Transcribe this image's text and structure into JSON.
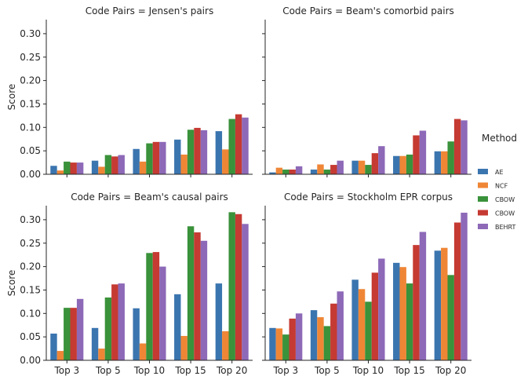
{
  "chart_data": {
    "type": "bar",
    "ylabel": "Score",
    "ylim": [
      0,
      0.33
    ],
    "yticks": [
      "0.00",
      "0.05",
      "0.10",
      "0.15",
      "0.20",
      "0.25",
      "0.30"
    ],
    "categories": [
      "Top 3",
      "Top 5",
      "Top 10",
      "Top 15",
      "Top 20"
    ],
    "legend": {
      "title": "Method",
      "position": "right",
      "entries": [
        {
          "name": "AE",
          "color": "#3b75af"
        },
        {
          "name": "NCF",
          "color": "#ef8636"
        },
        {
          "name": "CBOW",
          "color": "#3a923a"
        },
        {
          "name": "CBOW",
          "color": "#c53a32"
        },
        {
          "name": "BEHRT",
          "color": "#8d69b8"
        }
      ]
    },
    "panels": [
      {
        "title": "Code Pairs = Jensen's pairs",
        "series": [
          {
            "name": "AE",
            "values": [
              0.018,
              0.029,
              0.054,
              0.074,
              0.092
            ]
          },
          {
            "name": "NCF",
            "values": [
              0.008,
              0.016,
              0.027,
              0.042,
              0.053
            ]
          },
          {
            "name": "CBOW",
            "values": [
              0.027,
              0.041,
              0.066,
              0.095,
              0.118
            ]
          },
          {
            "name": "CBOW",
            "values": [
              0.025,
              0.038,
              0.069,
              0.099,
              0.128
            ]
          },
          {
            "name": "BEHRT",
            "values": [
              0.025,
              0.041,
              0.069,
              0.094,
              0.121
            ]
          }
        ]
      },
      {
        "title": "Code Pairs = Beam's comorbid pairs",
        "series": [
          {
            "name": "AE",
            "values": [
              0.004,
              0.01,
              0.029,
              0.039,
              0.049
            ]
          },
          {
            "name": "NCF",
            "values": [
              0.014,
              0.021,
              0.029,
              0.039,
              0.049
            ]
          },
          {
            "name": "CBOW",
            "values": [
              0.01,
              0.01,
              0.02,
              0.042,
              0.07
            ]
          },
          {
            "name": "CBOW",
            "values": [
              0.01,
              0.02,
              0.045,
              0.083,
              0.118
            ]
          },
          {
            "name": "BEHRT",
            "values": [
              0.017,
              0.029,
              0.06,
              0.093,
              0.115
            ]
          }
        ]
      },
      {
        "title": "Code Pairs = Beam's causal pairs",
        "series": [
          {
            "name": "AE",
            "values": [
              0.057,
              0.069,
              0.111,
              0.141,
              0.164
            ]
          },
          {
            "name": "NCF",
            "values": [
              0.02,
              0.025,
              0.036,
              0.052,
              0.062
            ]
          },
          {
            "name": "CBOW",
            "values": [
              0.112,
              0.134,
              0.229,
              0.286,
              0.316
            ]
          },
          {
            "name": "CBOW",
            "values": [
              0.112,
              0.162,
              0.231,
              0.273,
              0.312
            ]
          },
          {
            "name": "BEHRT",
            "values": [
              0.131,
              0.164,
              0.2,
              0.255,
              0.291
            ]
          }
        ]
      },
      {
        "title": "Code Pairs = Stockholm EPR corpus",
        "series": [
          {
            "name": "AE",
            "values": [
              0.069,
              0.107,
              0.172,
              0.208,
              0.234
            ]
          },
          {
            "name": "NCF",
            "values": [
              0.068,
              0.092,
              0.152,
              0.199,
              0.24
            ]
          },
          {
            "name": "CBOW",
            "values": [
              0.055,
              0.073,
              0.125,
              0.164,
              0.182
            ]
          },
          {
            "name": "CBOW",
            "values": [
              0.089,
              0.121,
              0.187,
              0.246,
              0.294
            ]
          },
          {
            "name": "BEHRT",
            "values": [
              0.1,
              0.147,
              0.217,
              0.274,
              0.315
            ]
          }
        ]
      }
    ]
  }
}
